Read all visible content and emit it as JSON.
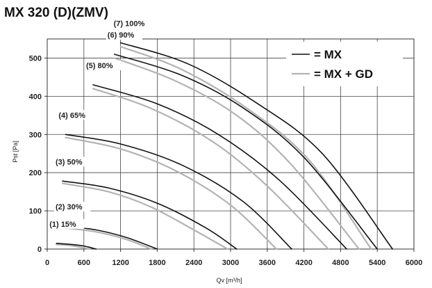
{
  "chart_data": {
    "type": "line",
    "title": "MX 320 (D)(ZMV)",
    "xlabel": "Qv [m³/h]",
    "ylabel": "Pst [Pa]",
    "xlim": [
      0,
      6000
    ],
    "ylim": [
      0,
      550
    ],
    "x_ticks": [
      "0",
      "600",
      "1200",
      "1800",
      "2400",
      "3000",
      "3600",
      "4200",
      "4800",
      "5400",
      "6000"
    ],
    "y_ticks": [
      "0",
      "100",
      "200",
      "300",
      "400",
      "500"
    ],
    "grid": true,
    "legend_position": "top-right",
    "legend": [
      {
        "label": "= MX",
        "color": "#111111"
      },
      {
        "label": "= MX + GD",
        "color": "#b3b3b3"
      }
    ],
    "series": [
      {
        "group": "MX",
        "curve_label": "(1) 15%",
        "x": [
          150,
          400,
          600,
          800
        ],
        "y": [
          15,
          12,
          8,
          0
        ]
      },
      {
        "group": "MX",
        "curve_label": "(2) 30%",
        "x": [
          250,
          800,
          1300,
          1800
        ],
        "y": [
          60,
          50,
          30,
          0
        ]
      },
      {
        "group": "MX",
        "curve_label": "(3) 50%",
        "x": [
          250,
          1000,
          1800,
          2600,
          3100
        ],
        "y": [
          178,
          160,
          120,
          55,
          0
        ]
      },
      {
        "group": "MX",
        "curve_label": "(4) 65%",
        "x": [
          300,
          1200,
          2200,
          3200,
          4000
        ],
        "y": [
          300,
          275,
          220,
          125,
          0
        ]
      },
      {
        "group": "MX",
        "curve_label": "(5) 80%",
        "x": [
          750,
          1800,
          2800,
          3800,
          4900
        ],
        "y": [
          430,
          380,
          300,
          180,
          0
        ]
      },
      {
        "group": "MX",
        "curve_label": "(6) 90%",
        "x": [
          1100,
          2200,
          3200,
          4200,
          5400
        ],
        "y": [
          510,
          455,
          370,
          240,
          0
        ]
      },
      {
        "group": "MX",
        "curve_label": "(7) 100%",
        "x": [
          1200,
          2300,
          3400,
          4500,
          5650
        ],
        "y": [
          540,
          485,
          385,
          250,
          0
        ]
      },
      {
        "group": "MX + GD",
        "x": [
          150,
          400,
          700
        ],
        "y": [
          12,
          9,
          0
        ]
      },
      {
        "group": "MX + GD",
        "x": [
          250,
          800,
          1300,
          1700
        ],
        "y": [
          56,
          45,
          25,
          0
        ]
      },
      {
        "group": "MX + GD",
        "x": [
          250,
          1000,
          1700,
          2400,
          2950
        ],
        "y": [
          172,
          150,
          110,
          50,
          0
        ]
      },
      {
        "group": "MX + GD",
        "x": [
          300,
          1200,
          2100,
          3000,
          3750
        ],
        "y": [
          292,
          262,
          205,
          115,
          0
        ]
      },
      {
        "group": "MX + GD",
        "x": [
          750,
          1700,
          2700,
          3600,
          4600
        ],
        "y": [
          420,
          368,
          282,
          165,
          0
        ]
      },
      {
        "group": "MX + GD",
        "x": [
          1100,
          2100,
          3100,
          4000,
          5100
        ],
        "y": [
          500,
          440,
          350,
          220,
          0
        ]
      },
      {
        "group": "MX + GD",
        "x": [
          1200,
          2200,
          3300,
          4300,
          5300
        ],
        "y": [
          530,
          470,
          365,
          230,
          0
        ]
      }
    ]
  }
}
